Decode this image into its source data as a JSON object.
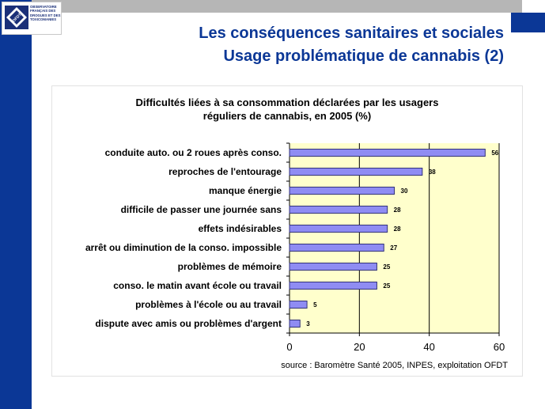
{
  "header": {
    "logo_lines": [
      "OBSERVATOIRE",
      "FRANÇAIS DES",
      "DROGUES ET DES",
      "TOXICOMANIES"
    ],
    "logo_mark_text": "OFDT",
    "title_line1": "Les conséquences sanitaires et sociales",
    "title_line2": "Usage problématique de cannabis (2)"
  },
  "colors": {
    "brand_blue": "#0b3796",
    "plot_bg": "#ffffcc",
    "bar_fill": "#8f8cf3",
    "bar_stroke": "#32327a"
  },
  "chart_data": {
    "type": "bar",
    "orientation": "horizontal",
    "title_lines": [
      "Difficultés liées à sa consommation déclarées par les usagers",
      "réguliers de cannabis, en 2005 (%)"
    ],
    "categories": [
      "conduite auto. ou 2 roues après conso.",
      "reproches de l'entourage",
      "manque énergie",
      "difficile de passer une journée sans",
      "effets indésirables",
      "arrêt ou diminution de la conso. impossible",
      "problèmes de mémoire",
      "conso. le matin avant école ou travail",
      "problèmes à l'école ou au travail",
      "dispute avec amis ou problèmes d'argent"
    ],
    "values": [
      56,
      38,
      30,
      28,
      28,
      27,
      25,
      25,
      5,
      3
    ],
    "xlim": [
      0,
      60
    ],
    "xticks": [
      0,
      20,
      40,
      60
    ],
    "grid": true,
    "source": "source : Baromètre Santé 2005, INPES, exploitation OFDT"
  }
}
